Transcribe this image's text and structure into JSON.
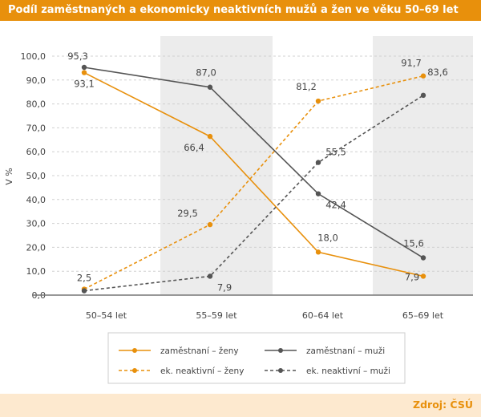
{
  "title": "Podíl zaměstnaných a ekonomicky neaktivních mužů a žen ve věku 50–69 let",
  "source": "Zdroj: ČSÚ",
  "chart_data": {
    "type": "line",
    "title": "Podíl zaměstnaných a ekonomicky neaktivních mužů a žen ve věku 50–69 let",
    "ylabel": "V %",
    "xlabel": "",
    "ylim": [
      0,
      100
    ],
    "yticks": [
      "0,0",
      "10,0",
      "20,0",
      "30,0",
      "40,0",
      "50,0",
      "60,0",
      "70,0",
      "80,0",
      "90,0",
      "100,0"
    ],
    "categories": [
      "50–54 let",
      "55–59 let",
      "60–64 let",
      "65–69 let"
    ],
    "grid": true,
    "legend": "bottom",
    "series": [
      {
        "name": "zaměstnaní – ženy",
        "values": [
          93.1,
          66.4,
          18.0,
          7.9
        ],
        "labels": [
          "93,1",
          "66,4",
          "18,0",
          "7,9"
        ],
        "color": "#e8900c",
        "dashed": false
      },
      {
        "name": "ek. neaktivní – ženy",
        "values": [
          2.5,
          29.5,
          81.2,
          91.7
        ],
        "labels": [
          "2,5",
          "29,5",
          "81,2",
          "91,7"
        ],
        "color": "#e8900c",
        "dashed": true
      },
      {
        "name": "zaměstnaní – muži",
        "values": [
          95.3,
          87.0,
          42.4,
          15.6
        ],
        "labels": [
          "95,3",
          "87,0",
          "42,4",
          "15,6"
        ],
        "color": "#555555",
        "dashed": false
      },
      {
        "name": "ek. neaktivní – muži",
        "values": [
          1.8,
          7.9,
          55.5,
          83.6
        ],
        "labels": [
          null,
          "7,9",
          "55,5",
          "83,6"
        ],
        "color": "#555555",
        "dashed": true
      }
    ]
  }
}
